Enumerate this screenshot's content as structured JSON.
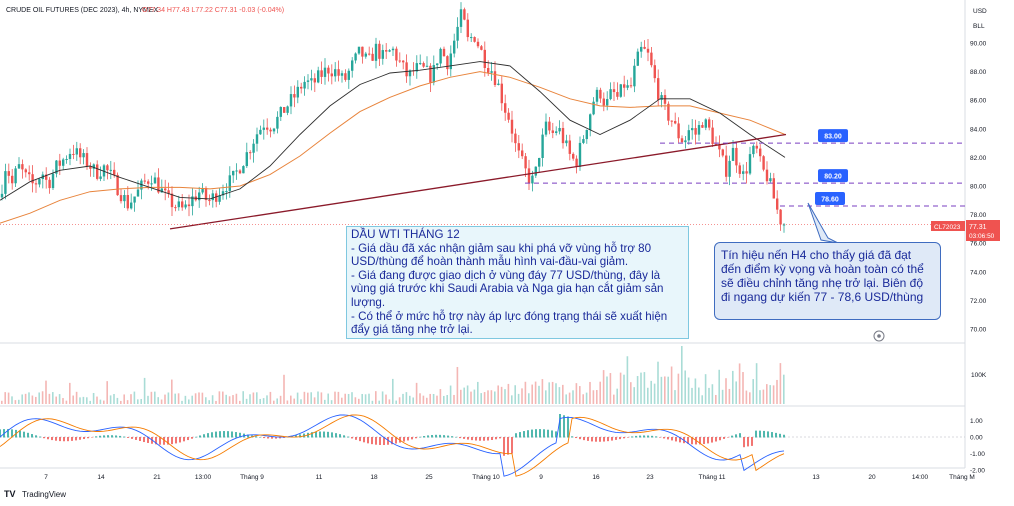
{
  "header": {
    "symbol": "CRUDE OIL FUTURES (DEC 2023), 4h, NYMEX",
    "ohlc_text": "O77.34 H77.43 L77.22 C77.31 -0.03 (-0.04%)"
  },
  "top_right": {
    "currency": "USD",
    "mode": "BLL"
  },
  "price_axis": {
    "ticks": [
      "90.00",
      "88.00",
      "86.00",
      "84.00",
      "82.00",
      "80.00",
      "78.00",
      "76.00",
      "74.00",
      "72.00",
      "70.00"
    ],
    "tick_values": [
      90,
      88,
      86,
      84,
      82,
      80,
      78,
      76,
      74,
      72,
      70
    ]
  },
  "level_labels": [
    {
      "text": "83.00",
      "value": 83.0
    },
    {
      "text": "80.20",
      "value": 80.2
    },
    {
      "text": "78.60",
      "value": 78.6
    }
  ],
  "price_tag": {
    "symbol": "CL72023",
    "price": "77.31",
    "countdown": "03:06:50"
  },
  "volume_axis": {
    "label": "100K"
  },
  "osc_axis": {
    "ticks": [
      "1.00",
      "0.00",
      "-1.00",
      "-2.00"
    ],
    "tick_values": [
      1,
      0,
      -1,
      -2
    ]
  },
  "x_axis": {
    "labels": [
      "7",
      "14",
      "21",
      "13:00",
      "Tháng 9",
      "11",
      "18",
      "25",
      "Tháng 10",
      "9",
      "16",
      "23",
      "Tháng 11",
      "13",
      "20",
      "14:00",
      "Tháng M"
    ]
  },
  "note_left": {
    "title": "DẦU WTI THÁNG 12",
    "lines": [
      "- Giá dầu đã xác nhận giảm sau khi phá vỡ vùng hỗ trợ 80 USD/thùng để hoàn thành mẫu hình vai-đầu-vai giảm.",
      "- Giá đang được giao dịch ở vùng đáy 77 USD/thùng, đây là vùng giá trước khi Saudi Arabia và Nga gia hạn cắt giảm sản lượng.",
      "- Có thể ở mức hỗ trợ này áp lực đóng trạng thái sẽ xuất hiện đẩy giá tăng nhẹ trở lại."
    ]
  },
  "note_right": {
    "text": "Tín hiệu nến H4 cho thấy giá đã đạt đến điểm kỳ vọng và hoàn toàn có thể sẽ điều chỉnh tăng nhẹ trở lại. Biên độ đi ngang dự kiến 77 - 78,6 USD/thùng"
  },
  "branding": {
    "logo": "TradingView"
  },
  "colors": {
    "up": "#26a69a",
    "down": "#ef5350",
    "ma_fast": "#2e2e2e",
    "ma_slow": "#e8843c",
    "trendline": "#8b1a2a",
    "level": "#7a3fc0",
    "label_bg": "#2962ff",
    "osc_blue": "#2962ff",
    "osc_orange": "#f57c00"
  },
  "chart_data": {
    "type": "candlestick",
    "title": "CRUDE OIL FUTURES (DEC 2023), 4h, NYMEX",
    "ylim": [
      69,
      92
    ],
    "close_path": [
      [
        0,
        79.2
      ],
      [
        6,
        81.6
      ],
      [
        12,
        80.1
      ],
      [
        18,
        81.4
      ],
      [
        26,
        80.6
      ],
      [
        34,
        80.0
      ],
      [
        42,
        81.0
      ],
      [
        48,
        80.1
      ],
      [
        56,
        81.3
      ],
      [
        64,
        81.9
      ],
      [
        72,
        82.6
      ],
      [
        80,
        82.0
      ],
      [
        88,
        81.6
      ],
      [
        96,
        80.9
      ],
      [
        104,
        81.3
      ],
      [
        112,
        80.6
      ],
      [
        120,
        79.6
      ],
      [
        128,
        78.7
      ],
      [
        136,
        79.4
      ],
      [
        144,
        80.2
      ],
      [
        152,
        80.7
      ],
      [
        160,
        79.8
      ],
      [
        168,
        79.0
      ],
      [
        176,
        78.6
      ],
      [
        184,
        78.3
      ],
      [
        192,
        79.1
      ],
      [
        200,
        79.6
      ],
      [
        208,
        78.9
      ],
      [
        216,
        79.4
      ],
      [
        224,
        80.0
      ],
      [
        232,
        80.4
      ],
      [
        240,
        81.4
      ],
      [
        248,
        82.4
      ],
      [
        256,
        83.6
      ],
      [
        264,
        84.4
      ],
      [
        272,
        84.2
      ],
      [
        280,
        84.9
      ],
      [
        288,
        85.7
      ],
      [
        296,
        86.4
      ],
      [
        304,
        87.3
      ],
      [
        312,
        87.1
      ],
      [
        320,
        87.7
      ],
      [
        328,
        88.2
      ],
      [
        336,
        88.0
      ],
      [
        344,
        87.3
      ],
      [
        352,
        88.4
      ],
      [
        360,
        89.4
      ],
      [
        368,
        88.6
      ],
      [
        376,
        89.6
      ],
      [
        384,
        88.9
      ],
      [
        392,
        89.6
      ],
      [
        400,
        88.6
      ],
      [
        408,
        87.6
      ],
      [
        416,
        88.2
      ],
      [
        424,
        88.1
      ],
      [
        432,
        87.6
      ],
      [
        440,
        89.6
      ],
      [
        448,
        88.6
      ],
      [
        456,
        90.6
      ],
      [
        462,
        92.1
      ],
      [
        468,
        90.1
      ],
      [
        474,
        90.6
      ],
      [
        480,
        89.6
      ],
      [
        486,
        88.6
      ],
      [
        492,
        88.1
      ],
      [
        498,
        87.1
      ],
      [
        504,
        85.6
      ],
      [
        510,
        84.6
      ],
      [
        516,
        82.6
      ],
      [
        522,
        81.6
      ],
      [
        528,
        80.6
      ],
      [
        534,
        80.3
      ],
      [
        540,
        82.6
      ],
      [
        546,
        84.1
      ],
      [
        552,
        83.6
      ],
      [
        558,
        84.1
      ],
      [
        564,
        83.1
      ],
      [
        570,
        82.1
      ],
      [
        576,
        81.6
      ],
      [
        582,
        83.1
      ],
      [
        588,
        84.6
      ],
      [
        594,
        86.1
      ],
      [
        600,
        86.6
      ],
      [
        606,
        85.6
      ],
      [
        612,
        86.6
      ],
      [
        618,
        86.1
      ],
      [
        624,
        87.1
      ],
      [
        630,
        86.6
      ],
      [
        636,
        88.6
      ],
      [
        642,
        89.6
      ],
      [
        648,
        89.1
      ],
      [
        654,
        87.6
      ],
      [
        660,
        86.1
      ],
      [
        666,
        85.1
      ],
      [
        672,
        84.6
      ],
      [
        678,
        83.6
      ],
      [
        684,
        83.1
      ],
      [
        690,
        84.1
      ],
      [
        696,
        83.6
      ],
      [
        702,
        84.6
      ],
      [
        708,
        84.1
      ],
      [
        714,
        83.1
      ],
      [
        720,
        82.1
      ],
      [
        726,
        81.1
      ],
      [
        732,
        82.6
      ],
      [
        738,
        81.6
      ],
      [
        744,
        80.6
      ],
      [
        750,
        82.1
      ],
      [
        756,
        82.6
      ],
      [
        762,
        81.1
      ],
      [
        768,
        80.6
      ],
      [
        774,
        79.1
      ],
      [
        778,
        78.1
      ],
      [
        782,
        77.6
      ],
      [
        786,
        77.3
      ]
    ],
    "ma_fast_path": [
      [
        0,
        79.0
      ],
      [
        30,
        80.3
      ],
      [
        60,
        81.1
      ],
      [
        90,
        81.4
      ],
      [
        120,
        80.6
      ],
      [
        150,
        79.9
      ],
      [
        180,
        79.2
      ],
      [
        210,
        79.1
      ],
      [
        240,
        79.8
      ],
      [
        270,
        81.4
      ],
      [
        300,
        83.6
      ],
      [
        330,
        85.6
      ],
      [
        360,
        87.1
      ],
      [
        390,
        87.9
      ],
      [
        420,
        88.1
      ],
      [
        450,
        88.4
      ],
      [
        480,
        88.7
      ],
      [
        510,
        88.4
      ],
      [
        540,
        86.6
      ],
      [
        570,
        84.6
      ],
      [
        600,
        83.6
      ],
      [
        630,
        84.6
      ],
      [
        660,
        86.1
      ],
      [
        690,
        86.1
      ],
      [
        720,
        85.1
      ],
      [
        750,
        83.6
      ],
      [
        785,
        82.0
      ]
    ],
    "ma_slow_path": [
      [
        0,
        77.4
      ],
      [
        30,
        78.1
      ],
      [
        60,
        79.0
      ],
      [
        90,
        79.6
      ],
      [
        120,
        79.8
      ],
      [
        150,
        79.9
      ],
      [
        180,
        79.9
      ],
      [
        210,
        79.8
      ],
      [
        240,
        80.0
      ],
      [
        270,
        80.8
      ],
      [
        300,
        82.1
      ],
      [
        330,
        83.7
      ],
      [
        360,
        85.2
      ],
      [
        390,
        86.2
      ],
      [
        420,
        87.0
      ],
      [
        450,
        87.6
      ],
      [
        480,
        88.0
      ],
      [
        510,
        87.6
      ],
      [
        540,
        86.9
      ],
      [
        570,
        86.1
      ],
      [
        600,
        85.6
      ],
      [
        630,
        85.5
      ],
      [
        660,
        85.6
      ],
      [
        690,
        85.6
      ],
      [
        720,
        85.1
      ],
      [
        750,
        84.6
      ],
      [
        785,
        83.6
      ]
    ],
    "trendline": [
      [
        170,
        77.0
      ],
      [
        786,
        83.6
      ]
    ],
    "levels": [
      83.0,
      80.2,
      78.6
    ],
    "last_price": 77.31,
    "volume_axis_label": "100K",
    "osc_range": [
      -2.2,
      1.4
    ]
  }
}
